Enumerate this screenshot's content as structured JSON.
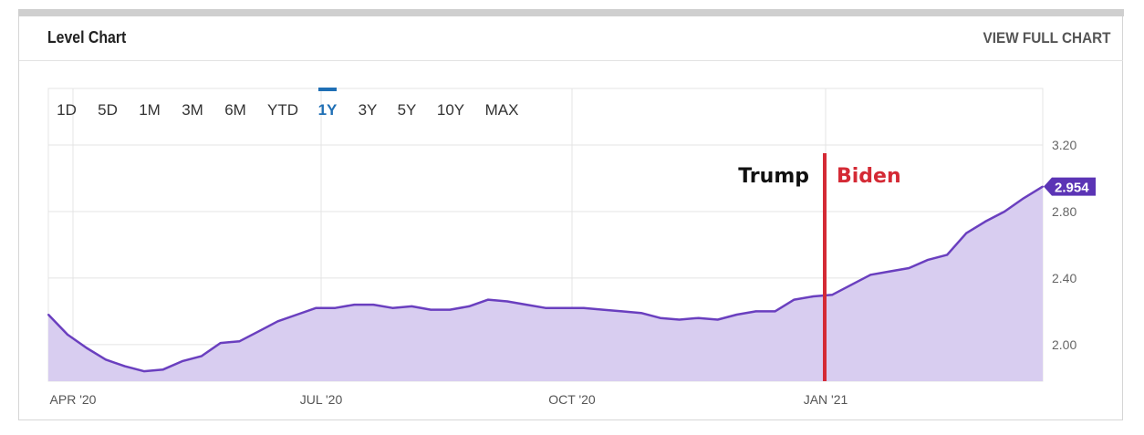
{
  "header": {
    "title": "Level Chart",
    "view_full": "VIEW FULL CHART"
  },
  "ranges": [
    "1D",
    "5D",
    "1M",
    "3M",
    "6M",
    "YTD",
    "1Y",
    "3Y",
    "5Y",
    "10Y",
    "MAX"
  ],
  "active_range": "1Y",
  "annotations": {
    "left": "Trump",
    "right": "Biden"
  },
  "colors": {
    "line": "#6a3fbf",
    "fill": "#d8cdf0",
    "marker": "#5b34b5",
    "divider": "#d42a35",
    "active": "#1f6fb5"
  },
  "chart_data": {
    "type": "area",
    "title": "Level Chart",
    "xlabel": "",
    "ylabel": "",
    "x_ticks": [
      "APR '20",
      "JUL '20",
      "OCT '20",
      "JAN '21"
    ],
    "y_ticks": [
      "2.00",
      "2.40",
      "2.80",
      "3.20"
    ],
    "ylim": [
      1.78,
      3.54
    ],
    "last_value": "2.954",
    "values": [
      2.18,
      2.06,
      1.98,
      1.91,
      1.87,
      1.84,
      1.85,
      1.9,
      1.93,
      2.01,
      2.02,
      2.08,
      2.14,
      2.18,
      2.22,
      2.22,
      2.24,
      2.24,
      2.22,
      2.23,
      2.21,
      2.21,
      2.23,
      2.27,
      2.26,
      2.24,
      2.22,
      2.22,
      2.22,
      2.21,
      2.2,
      2.19,
      2.16,
      2.15,
      2.16,
      2.15,
      2.18,
      2.2,
      2.2,
      2.27,
      2.29,
      2.3,
      2.36,
      2.42,
      2.44,
      2.46,
      2.51,
      2.54,
      2.67,
      2.74,
      2.8,
      2.88,
      2.95
    ]
  }
}
